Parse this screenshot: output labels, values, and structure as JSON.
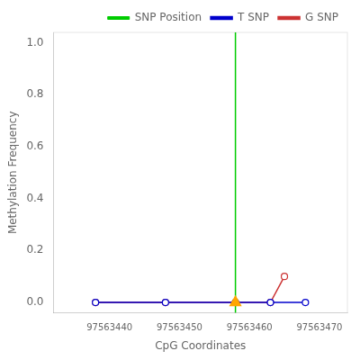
{
  "chart_data": {
    "type": "line",
    "xlabel": "CpG Coordinates",
    "ylabel": "Methylation Frequency",
    "xlim": [
      97563432,
      97563474
    ],
    "ylim": [
      -0.04,
      1.04
    ],
    "xticks": [
      97563440,
      97563450,
      97563460,
      97563470
    ],
    "yticks": [
      {
        "value": 0.0,
        "label": "0.0"
      },
      0.2,
      0.4,
      0.6,
      0.8,
      {
        "value": 1.0,
        "label": "1.0"
      }
    ],
    "grid": false,
    "legend": "upper right",
    "series": [
      {
        "name": "T SNP",
        "color": "#0000CC",
        "marker": "circle",
        "x": [
          97563438,
          97563448,
          97563458,
          97563463,
          97563468
        ],
        "values": [
          0.0,
          0.0,
          0.0,
          0.0,
          0.0
        ]
      },
      {
        "name": "G SNP",
        "color": "#CC3333",
        "marker": "circle",
        "x": [
          97563438,
          97563448,
          97563458,
          97563463,
          97563465
        ],
        "values": [
          0.0,
          0.0,
          0.0,
          0.0,
          0.1
        ]
      },
      {
        "name": "SNP Position",
        "type": "vline",
        "color": "#00CC00",
        "x": [
          97563458
        ]
      },
      {
        "type": "scatter",
        "marker": "triangle",
        "color": "#FFA500",
        "x": [
          97563458
        ],
        "values": [
          0.0
        ]
      }
    ]
  }
}
